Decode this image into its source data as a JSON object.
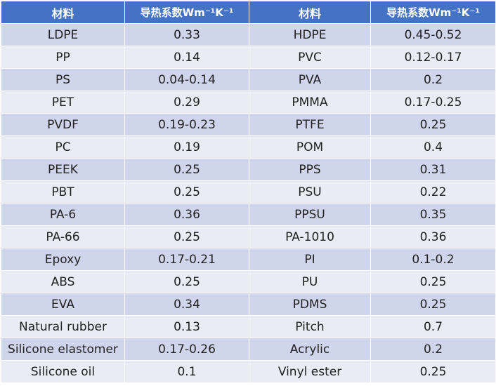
{
  "table": {
    "headers": [
      "材料",
      "导热系数Wm⁻¹K⁻¹",
      "材料",
      "导热系数Wm⁻¹K⁻¹"
    ],
    "rows": [
      [
        "LDPE",
        "0.33",
        "HDPE",
        "0.45-0.52"
      ],
      [
        "PP",
        "0.14",
        "PVC",
        "0.12-0.17"
      ],
      [
        "PS",
        "0.04-0.14",
        "PVA",
        "0.2"
      ],
      [
        "PET",
        "0.29",
        "PMMA",
        "0.17-0.25"
      ],
      [
        "PVDF",
        "0.19-0.23",
        "PTFE",
        "0.25"
      ],
      [
        "PC",
        "0.19",
        "POM",
        "0.4"
      ],
      [
        "PEEK",
        "0.25",
        "PPS",
        "0.31"
      ],
      [
        "PBT",
        "0.25",
        "PSU",
        "0.22"
      ],
      [
        "PA-6",
        "0.36",
        "PPSU",
        "0.35"
      ],
      [
        "PA-66",
        "0.25",
        "PA-1010",
        "0.36"
      ],
      [
        "Epoxy",
        "0.17-0.21",
        "PI",
        "0.1-0.2"
      ],
      [
        "ABS",
        "0.25",
        "PU",
        "0.25"
      ],
      [
        "EVA",
        "0.34",
        "PDMS",
        "0.25"
      ],
      [
        "Natural rubber",
        "0.13",
        "Pitch",
        "0.7"
      ],
      [
        "Silicone elastomer",
        "0.17-0.26",
        "Acrylic",
        "0.2"
      ],
      [
        "Silicone oil",
        "0.1",
        "Vinyl ester",
        "0.25"
      ]
    ]
  },
  "colors": {
    "header_bg": "#4472c4",
    "header_text": "#ffffff",
    "row_odd_bg": "#cfd5ea",
    "row_even_bg": "#e9ebf5",
    "cell_text": "#222222"
  }
}
